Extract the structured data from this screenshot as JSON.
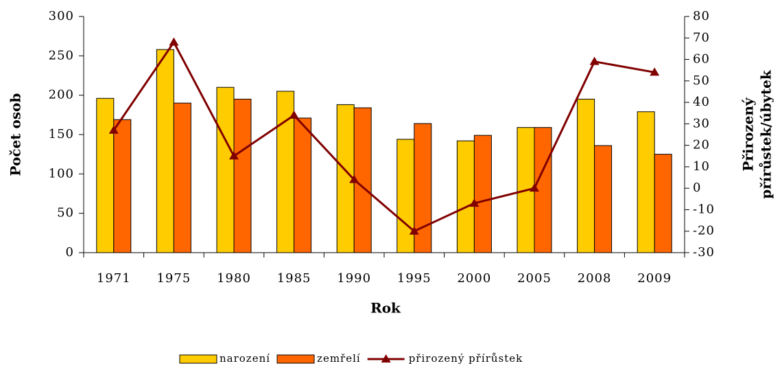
{
  "chart_data": {
    "type": "bar_line",
    "x_label": "Rok",
    "y_label": "Počet osob",
    "y2_label": [
      "Přirozený",
      "přírůstek/úbytek"
    ],
    "categories": [
      "1971",
      "1975",
      "1980",
      "1985",
      "1990",
      "1995",
      "2000",
      "2005",
      "2008",
      "2009"
    ],
    "series": [
      {
        "name": "narození",
        "type": "bar",
        "color": "#ffcc00",
        "values": [
          196,
          258,
          210,
          205,
          188,
          144,
          142,
          159,
          195,
          179
        ]
      },
      {
        "name": "zemřelí",
        "type": "bar",
        "color": "#ff6600",
        "values": [
          169,
          190,
          195,
          171,
          184,
          164,
          149,
          159,
          136,
          125
        ]
      },
      {
        "name": "přirozený přírůstek",
        "type": "line",
        "axis": "y2",
        "color": "#800000",
        "values": [
          27,
          68,
          15,
          34,
          4,
          -20,
          -7,
          0,
          59,
          54
        ]
      }
    ],
    "ylim": [
      0,
      300
    ],
    "yticks": [
      0,
      50,
      100,
      150,
      200,
      250,
      300
    ],
    "y2lim": [
      -30,
      80
    ],
    "y2ticks": [
      -30,
      -20,
      -10,
      0,
      10,
      20,
      30,
      40,
      50,
      60,
      70,
      80
    ],
    "legend": "bottom"
  }
}
